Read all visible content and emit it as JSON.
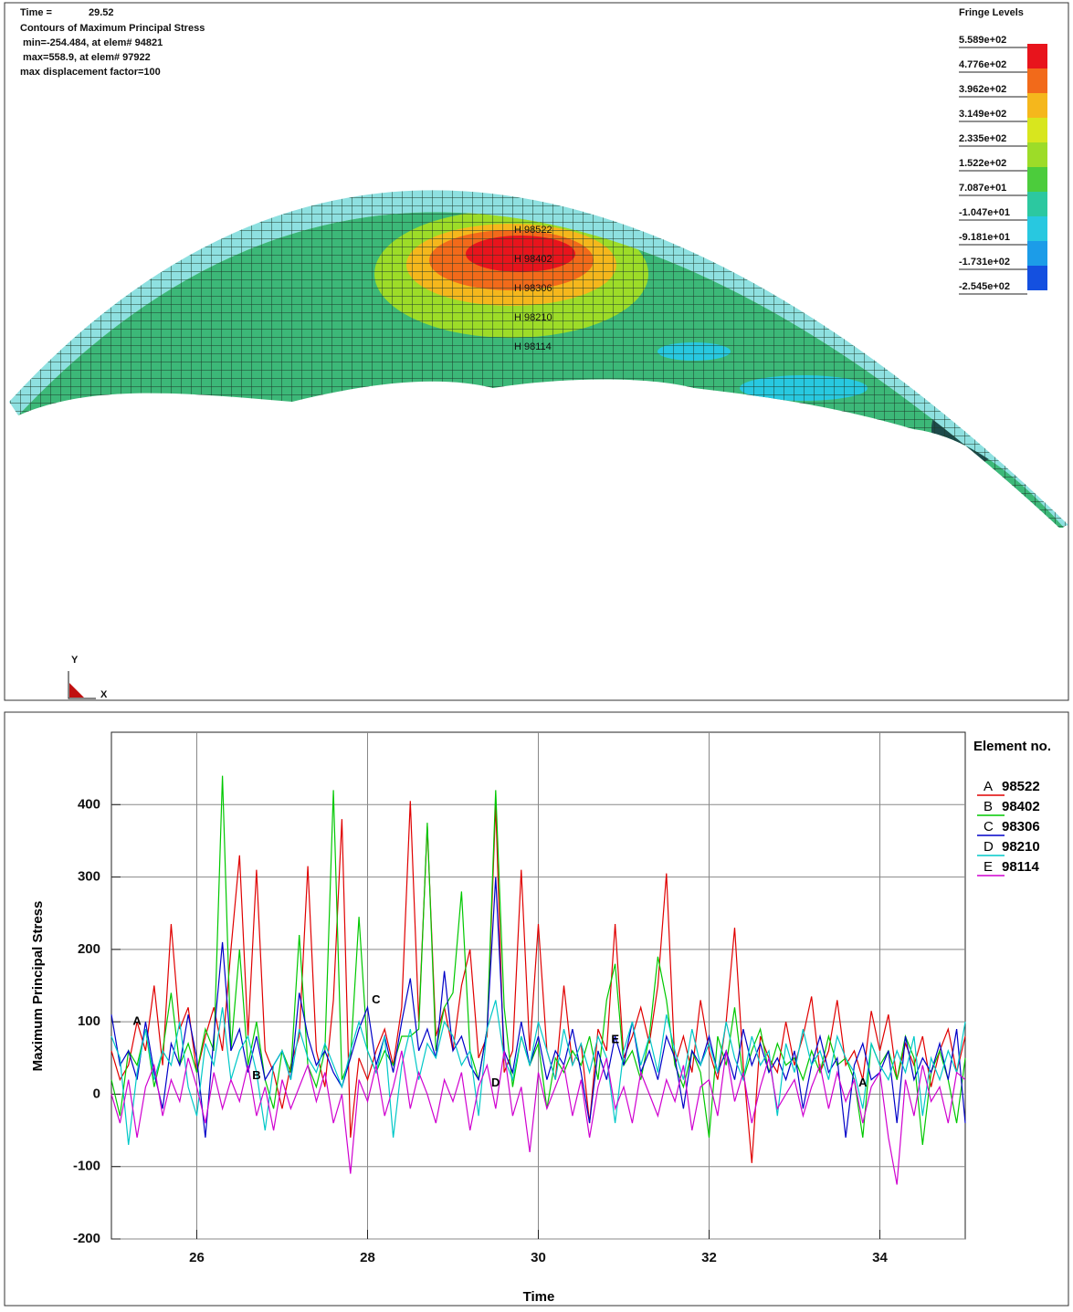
{
  "contour_panel": {
    "time_label": "Time =",
    "time_value": "29.52",
    "title": "Contours of Maximum Principal Stress",
    "min_line": "min=-254.484, at elem# 94821",
    "max_line": "max=558.9, at elem# 97922",
    "displacement_line": "max displacement factor=100",
    "fringe_title": "Fringe Levels",
    "fringe_levels": [
      "5.589e+02",
      "4.776e+02",
      "3.962e+02",
      "3.149e+02",
      "2.335e+02",
      "1.522e+02",
      "7.087e+01",
      "-1.047e+01",
      "-9.181e+01",
      "-1.731e+02",
      "-2.545e+02"
    ],
    "fringe_colors": [
      "#e8141c",
      "#f26a1a",
      "#f5b71c",
      "#d8e61e",
      "#9ddc28",
      "#4ccc3c",
      "#2cc8a0",
      "#28c8e0",
      "#1c9ce8",
      "#1450e0"
    ],
    "element_labels": [
      "H 98522",
      "H 98402",
      "H 98306",
      "H 98210",
      "H 98114"
    ],
    "axis_labels": {
      "y": "Y",
      "x": "X"
    }
  },
  "chart_data": {
    "type": "line",
    "ylabel": "Maximum Principal Stress",
    "xlabel": "Time",
    "legend_title": "Element no.",
    "xlim": [
      25,
      35
    ],
    "ylim": [
      -200,
      500
    ],
    "xticks": [
      26,
      28,
      30,
      32,
      34
    ],
    "yticks": [
      -200,
      -100,
      0,
      100,
      200,
      300,
      400
    ],
    "grid": true,
    "x": [
      25,
      25.1,
      25.2,
      25.3,
      25.4,
      25.5,
      25.6,
      25.7,
      25.8,
      25.9,
      26,
      26.1,
      26.2,
      26.3,
      26.4,
      26.5,
      26.6,
      26.7,
      26.8,
      26.9,
      27,
      27.1,
      27.2,
      27.3,
      27.4,
      27.5,
      27.6,
      27.7,
      27.8,
      27.9,
      28,
      28.1,
      28.2,
      28.3,
      28.4,
      28.5,
      28.6,
      28.7,
      28.8,
      28.9,
      29,
      29.1,
      29.2,
      29.3,
      29.4,
      29.5,
      29.6,
      29.7,
      29.8,
      29.9,
      30,
      30.1,
      30.2,
      30.3,
      30.4,
      30.5,
      30.6,
      30.7,
      30.8,
      30.9,
      31,
      31.1,
      31.2,
      31.3,
      31.4,
      31.5,
      31.6,
      31.7,
      31.8,
      31.9,
      32,
      32.1,
      32.2,
      32.3,
      32.4,
      32.5,
      32.6,
      32.7,
      32.8,
      32.9,
      33,
      33.1,
      33.2,
      33.3,
      33.4,
      33.5,
      33.6,
      33.7,
      33.8,
      33.9,
      34,
      34.1,
      34.2,
      34.3,
      34.4,
      34.5,
      34.6,
      34.7,
      34.8,
      34.9,
      35
    ],
    "series": [
      {
        "tag": "A",
        "name": "98522",
        "color": "#e00000",
        "values": [
          60,
          20,
          40,
          100,
          60,
          150,
          40,
          235,
          90,
          120,
          30,
          80,
          120,
          60,
          200,
          330,
          80,
          310,
          60,
          30,
          -20,
          40,
          80,
          315,
          60,
          10,
          130,
          380,
          -60,
          50,
          20,
          60,
          90,
          40,
          120,
          405,
          100,
          370,
          80,
          120,
          60,
          150,
          200,
          50,
          80,
          400,
          30,
          60,
          310,
          60,
          235,
          60,
          20,
          150,
          40,
          70,
          -40,
          90,
          60,
          235,
          50,
          80,
          120,
          70,
          150,
          305,
          40,
          80,
          30,
          130,
          60,
          20,
          100,
          230,
          40,
          -95,
          80,
          50,
          30,
          100,
          40,
          80,
          135,
          30,
          60,
          130,
          40,
          60,
          20,
          115,
          60,
          110,
          20,
          70,
          40,
          80,
          10,
          60,
          90,
          30,
          80
        ]
      },
      {
        "tag": "B",
        "name": "98402",
        "color": "#00c800",
        "values": [
          20,
          -30,
          60,
          40,
          90,
          10,
          60,
          140,
          40,
          70,
          30,
          90,
          60,
          440,
          60,
          200,
          40,
          100,
          20,
          -20,
          60,
          30,
          220,
          40,
          10,
          60,
          420,
          20,
          50,
          245,
          60,
          30,
          60,
          40,
          80,
          80,
          90,
          375,
          60,
          120,
          140,
          280,
          60,
          20,
          90,
          420,
          120,
          10,
          80,
          40,
          70,
          -20,
          50,
          30,
          60,
          40,
          80,
          20,
          130,
          180,
          40,
          60,
          20,
          80,
          190,
          130,
          40,
          10,
          60,
          30,
          -60,
          80,
          40,
          120,
          20,
          60,
          90,
          30,
          70,
          40,
          50,
          20,
          60,
          30,
          80,
          40,
          50,
          20,
          -60,
          70,
          40,
          60,
          20,
          80,
          50,
          -70,
          30,
          60,
          20,
          -40,
          50
        ]
      },
      {
        "tag": "C",
        "name": "98306",
        "color": "#0000c8",
        "values": [
          110,
          40,
          60,
          20,
          100,
          30,
          -20,
          70,
          40,
          110,
          50,
          -60,
          80,
          210,
          60,
          90,
          30,
          80,
          20,
          40,
          60,
          20,
          140,
          80,
          40,
          60,
          30,
          10,
          50,
          90,
          120,
          40,
          80,
          30,
          100,
          160,
          60,
          90,
          50,
          170,
          60,
          80,
          40,
          20,
          90,
          300,
          60,
          30,
          100,
          40,
          80,
          20,
          60,
          40,
          90,
          30,
          -40,
          60,
          20,
          80,
          40,
          100,
          30,
          60,
          20,
          80,
          50,
          -20,
          60,
          40,
          80,
          30,
          60,
          20,
          90,
          40,
          70,
          30,
          50,
          20,
          60,
          -20,
          40,
          80,
          30,
          50,
          -60,
          40,
          70,
          20,
          30,
          60,
          -40,
          80,
          20,
          50,
          30,
          70,
          20,
          90,
          -40
        ]
      },
      {
        "tag": "D",
        "name": "98210",
        "color": "#00c8c8",
        "values": [
          80,
          50,
          -70,
          30,
          90,
          20,
          60,
          40,
          100,
          10,
          -30,
          70,
          40,
          120,
          20,
          60,
          80,
          30,
          -50,
          40,
          60,
          20,
          90,
          50,
          30,
          70,
          40,
          10,
          60,
          100,
          60,
          30,
          80,
          -60,
          40,
          90,
          20,
          70,
          50,
          100,
          80,
          40,
          60,
          -30,
          90,
          130,
          50,
          20,
          80,
          40,
          100,
          60,
          20,
          90,
          40,
          70,
          30,
          80,
          50,
          -40,
          60,
          100,
          40,
          80,
          30,
          110,
          60,
          20,
          90,
          40,
          70,
          30,
          100,
          50,
          20,
          80,
          40,
          60,
          -30,
          70,
          30,
          90,
          40,
          60,
          20,
          80,
          50,
          30,
          -20,
          70,
          40,
          20,
          60,
          30,
          80,
          -30,
          50,
          20,
          60,
          30,
          100
        ]
      },
      {
        "tag": "E",
        "name": "98114",
        "color": "#d000d0",
        "values": [
          0,
          -40,
          20,
          -60,
          10,
          40,
          -30,
          20,
          -10,
          50,
          10,
          -40,
          30,
          -20,
          20,
          -10,
          40,
          -30,
          10,
          -50,
          20,
          -20,
          10,
          40,
          -10,
          30,
          -40,
          0,
          -110,
          20,
          -10,
          40,
          -30,
          10,
          60,
          -20,
          30,
          0,
          -40,
          20,
          -10,
          30,
          -50,
          10,
          40,
          -20,
          60,
          -30,
          10,
          -80,
          30,
          -20,
          10,
          40,
          -30,
          20,
          -60,
          10,
          50,
          -20,
          10,
          -40,
          30,
          0,
          -30,
          20,
          -10,
          40,
          -50,
          10,
          20,
          -30,
          60,
          -10,
          30,
          -40,
          10,
          50,
          -20,
          0,
          20,
          -30,
          10,
          40,
          -20,
          30,
          -10,
          20,
          -40,
          10,
          30,
          -60,
          -125,
          20,
          -30,
          40,
          -10,
          10,
          -40,
          30,
          20
        ]
      }
    ],
    "annotations": [
      {
        "text": "A",
        "x": 25.3,
        "y": 100
      },
      {
        "text": "B",
        "x": 26.7,
        "y": 25
      },
      {
        "text": "C",
        "x": 28.1,
        "y": 130
      },
      {
        "text": "D",
        "x": 29.5,
        "y": 15
      },
      {
        "text": "E",
        "x": 30.9,
        "y": 75
      },
      {
        "text": "A",
        "x": 33.8,
        "y": 15
      }
    ]
  }
}
